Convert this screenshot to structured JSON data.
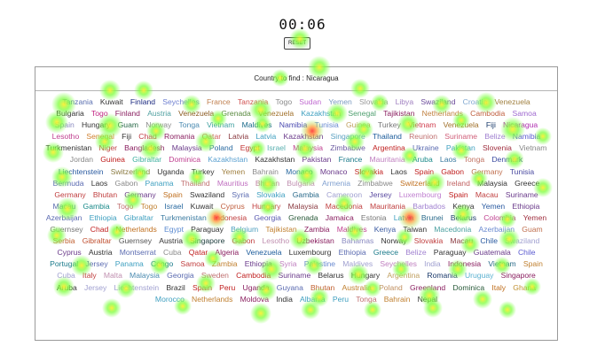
{
  "timer": "00:06",
  "reset_label": "RESET",
  "prompt": "Country to find : Nicaragua",
  "countries": [
    [
      "Tanzania",
      "#5a6fb0"
    ],
    [
      "Kuwait",
      "#333333"
    ],
    [
      "Finland",
      "#1c2a80"
    ],
    [
      "Seychelles",
      "#6e7fd0"
    ],
    [
      "France",
      "#c08050"
    ],
    [
      "Tanzania",
      "#d05050"
    ],
    [
      "Togo",
      "#888888"
    ],
    [
      "Sudan",
      "#c06ad0"
    ],
    [
      "Yemen",
      "#7a9ac0"
    ],
    [
      "Slovakia",
      "#9a9a9a"
    ],
    [
      "Libya",
      "#a080c0"
    ],
    [
      "Swaziland",
      "#6a4a9a"
    ],
    [
      "Croatia",
      "#80a8d0"
    ],
    [
      "Venezuela",
      "#a08040"
    ],
    [
      "Bulgaria",
      "#333333"
    ],
    [
      "Togo",
      "#c02080"
    ],
    [
      "Finland",
      "#8a2060"
    ],
    [
      "Austria",
      "#50a0a0"
    ],
    [
      "Venezuela",
      "#8a5a20"
    ],
    [
      "Grenada",
      "#5a8a40"
    ],
    [
      "Venezuela",
      "#a0702a"
    ],
    [
      "Kazakhstan",
      "#40a0c0"
    ],
    [
      "Senegal",
      "#50a070"
    ],
    [
      "Tajikistan",
      "#8a2060"
    ],
    [
      "Netherlands",
      "#c08040"
    ],
    [
      "Cambodia",
      "#c06040"
    ],
    [
      "Samoa",
      "#a06ad0"
    ],
    [
      "Spain",
      "#8a8ac0"
    ],
    [
      "Hungary",
      "#333333"
    ],
    [
      "Guam",
      "#2a6a4a"
    ],
    [
      "Norway",
      "#8a8a8a"
    ],
    [
      "Tonga",
      "#4a8ab0"
    ],
    [
      "Vietnam",
      "#40a0a0"
    ],
    [
      "Maldives",
      "#1a6a8a"
    ],
    [
      "Namibia",
      "#4a4ab0"
    ],
    [
      "Tunisia",
      "#6a8ad0"
    ],
    [
      "Guinea",
      "#c0a060"
    ],
    [
      "Turkey",
      "#777777"
    ],
    [
      "Vietnam",
      "#d04050"
    ],
    [
      "Venezuela",
      "#a0702a"
    ],
    [
      "Fiji",
      "#1a3a6a"
    ],
    [
      "Nicaragua",
      "#b030b0"
    ],
    [
      "Lesotho",
      "#c04090"
    ],
    [
      "Senegal",
      "#d08030"
    ],
    [
      "Fiji",
      "#333333"
    ],
    [
      "Chad",
      "#c03a40"
    ],
    [
      "Romania",
      "#8a2060"
    ],
    [
      "Qatar",
      "#d06060"
    ],
    [
      "Latvia",
      "#8a3a40"
    ],
    [
      "Latvia",
      "#40a0c0"
    ],
    [
      "Kazakhstan",
      "#6a3a8a"
    ],
    [
      "Singapore",
      "#5aa0c0"
    ],
    [
      "Thailand",
      "#1a5a9a"
    ],
    [
      "Reunion",
      "#c07070"
    ],
    [
      "Suriname",
      "#d0607a"
    ],
    [
      "Belize",
      "#a080d0"
    ],
    [
      "Namibia",
      "#5a5ad0"
    ],
    [
      "Turkmenistan",
      "#333333"
    ],
    [
      "Niger",
      "#c04040"
    ],
    [
      "Bangladesh",
      "#8a2060"
    ],
    [
      "Malaysia",
      "#6a3a8a"
    ],
    [
      "Poland",
      "#2a6aa0"
    ],
    [
      "Egypt",
      "#c03030"
    ],
    [
      "Israel",
      "#5ab0b0"
    ],
    [
      "Malaysia",
      "#c04090"
    ],
    [
      "Zimbabwe",
      "#6a5aa0"
    ],
    [
      "Argentina",
      "#c02020"
    ],
    [
      "Ukraine",
      "#5a6ab0"
    ],
    [
      "Pakistan",
      "#40a0c0"
    ],
    [
      "Slovenia",
      "#a03040"
    ],
    [
      "Vietnam",
      "#888888"
    ],
    [
      "Jordan",
      "#888888"
    ],
    [
      "Guinea",
      "#c02020"
    ],
    [
      "Gibraltar",
      "#40b0a0"
    ],
    [
      "Dominica",
      "#c04090"
    ],
    [
      "Kazakhstan",
      "#5aa0d0"
    ],
    [
      "Kazakhstan",
      "#333333"
    ],
    [
      "Pakistan",
      "#6a3a8a"
    ],
    [
      "France",
      "#1a7a8a"
    ],
    [
      "Mauritania",
      "#c080c0"
    ],
    [
      "Aruba",
      "#1a8a8a"
    ],
    [
      "Laos",
      "#3a7aa0"
    ],
    [
      "Tonga",
      "#c07060"
    ],
    [
      "Denmark",
      "#3a4aa0"
    ],
    [
      "Liechtenstein",
      "#2a5aa0"
    ],
    [
      "Switzerland",
      "#8a7a40"
    ],
    [
      "Uganda",
      "#333333"
    ],
    [
      "Turkey",
      "#333333"
    ],
    [
      "Yemen",
      "#a08040"
    ],
    [
      "Bahrain",
      "#8a8a8a"
    ],
    [
      "Monaco",
      "#2a6aa0"
    ],
    [
      "Monaco",
      "#6a3a8a"
    ],
    [
      "Slovakia",
      "#c02020"
    ],
    [
      "Laos",
      "#333333"
    ],
    [
      "Spain",
      "#c02020"
    ],
    [
      "Gabon",
      "#c02020"
    ],
    [
      "Germany",
      "#c07050"
    ],
    [
      "Tunisia",
      "#4a4aa0"
    ],
    [
      "Bermuda",
      "#5a6ab0"
    ],
    [
      "Laos",
      "#333333"
    ],
    [
      "Gabon",
      "#8a8a8a"
    ],
    [
      "Panama",
      "#40a0c0"
    ],
    [
      "Thailand",
      "#c07070"
    ],
    [
      "Mauritius",
      "#c070c0"
    ],
    [
      "Bhutan",
      "#c080a0"
    ],
    [
      "Bulgaria",
      "#c090b0"
    ],
    [
      "Armenia",
      "#80a0d0"
    ],
    [
      "Zimbabwe",
      "#8a8a8a"
    ],
    [
      "Switzerland",
      "#c07020"
    ],
    [
      "Ireland",
      "#c06060"
    ],
    [
      "Malaysia",
      "#333333"
    ],
    [
      "Greece",
      "#333333"
    ],
    [
      "Germany",
      "#c04040"
    ],
    [
      "Bhutan",
      "#c04040"
    ],
    [
      "Germany",
      "#6a3a8a"
    ],
    [
      "Spain",
      "#c07020"
    ],
    [
      "Swaziland",
      "#333333"
    ],
    [
      "Syria",
      "#5a6ab0"
    ],
    [
      "Slovakia",
      "#40a0c0"
    ],
    [
      "Gambia",
      "#2a6a8a"
    ],
    [
      "Cameroon",
      "#a0a0d0"
    ],
    [
      "Jersey",
      "#5a4aa0"
    ],
    [
      "Luxembourg",
      "#c080d0"
    ],
    [
      "Spain",
      "#c02020"
    ],
    [
      "Macau",
      "#c04040"
    ],
    [
      "Suriname",
      "#6a3a8a"
    ],
    [
      "Macau",
      "#5a6ab0"
    ],
    [
      "Gambia",
      "#1a8a8a"
    ],
    [
      "Togo",
      "#c07070"
    ],
    [
      "Togo",
      "#c08030"
    ],
    [
      "Israel",
      "#2a6aa0"
    ],
    [
      "Kuwait",
      "#333333"
    ],
    [
      "Cyprus",
      "#c06040"
    ],
    [
      "Hungary",
      "#c04040"
    ],
    [
      "Malaysia",
      "#8a3a40"
    ],
    [
      "Macedonia",
      "#c04040"
    ],
    [
      "Mauritania",
      "#c04040"
    ],
    [
      "Barbados",
      "#a080d0"
    ],
    [
      "Kenya",
      "#333333"
    ],
    [
      "Yemen",
      "#2a5aa0"
    ],
    [
      "Ethiopia",
      "#6a3a8a"
    ],
    [
      "Azerbaijan",
      "#5a6ab0"
    ],
    [
      "Ethiopia",
      "#40a0c0"
    ],
    [
      "Gibraltar",
      "#40a0c0"
    ],
    [
      "Turkmenistan",
      "#3a7aa0"
    ],
    [
      "Indonesia",
      "#c04040"
    ],
    [
      "Georgia",
      "#5a5ab0"
    ],
    [
      "Grenada",
      "#2a5a3a"
    ],
    [
      "Jamaica",
      "#8a2060"
    ],
    [
      "Estonia",
      "#777777"
    ],
    [
      "Latvia",
      "#40a0c0"
    ],
    [
      "Brunei",
      "#2a6a8a"
    ],
    [
      "Belarus",
      "#1a3a6a"
    ],
    [
      "Colombia",
      "#c04090"
    ],
    [
      "Yemen",
      "#a03040"
    ],
    [
      "Guernsey",
      "#777777"
    ],
    [
      "Chad",
      "#c02020"
    ],
    [
      "Netherlands",
      "#c07020"
    ],
    [
      "Egypt",
      "#5a8ad0"
    ],
    [
      "Paraguay",
      "#333333"
    ],
    [
      "Belgium",
      "#50a0c0"
    ],
    [
      "Tajikistan",
      "#c08030"
    ],
    [
      "Zambia",
      "#8a2060"
    ],
    [
      "Maldives",
      "#c04090"
    ],
    [
      "Kenya",
      "#3a5aa0"
    ],
    [
      "Taiwan",
      "#333333"
    ],
    [
      "Macedonia",
      "#4aa0a0"
    ],
    [
      "Azerbaijan",
      "#6a8ad0"
    ],
    [
      "Guam",
      "#c07050"
    ],
    [
      "Serbia",
      "#c06030"
    ],
    [
      "Gibraltar",
      "#c05030"
    ],
    [
      "Guernsey",
      "#555555"
    ],
    [
      "Austria",
      "#333333"
    ],
    [
      "Singapore",
      "#1a3a3a"
    ],
    [
      "Gabon",
      "#c04040"
    ],
    [
      "Lesotho",
      "#c090b0"
    ],
    [
      "Uzbekistan",
      "#8a2060"
    ],
    [
      "Bahamas",
      "#8a8ac0"
    ],
    [
      "Norway",
      "#333333"
    ],
    [
      "Slovakia",
      "#c04040"
    ],
    [
      "Macau",
      "#8a3a40"
    ],
    [
      "Chile",
      "#2a5aa0"
    ],
    [
      "Swaziland",
      "#a0a0d0"
    ],
    [
      "Cyprus",
      "#6a3a8a"
    ],
    [
      "Austria",
      "#333333"
    ],
    [
      "Montserrat",
      "#5a6ab0"
    ],
    [
      "Cuba",
      "#8a8a8a"
    ],
    [
      "Qatar",
      "#c02020"
    ],
    [
      "Algeria",
      "#8a2060"
    ],
    [
      "Venezuela",
      "#1a5a9a"
    ],
    [
      "Luxembourg",
      "#333333"
    ],
    [
      "Ethiopia",
      "#5a6ab0"
    ],
    [
      "Greece",
      "#1a7a8a"
    ],
    [
      "Belize",
      "#a080d0"
    ],
    [
      "Paraguay",
      "#333333"
    ],
    [
      "Guatemala",
      "#6a3a8a"
    ],
    [
      "Chile",
      "#5a5ad0"
    ],
    [
      "Portugal",
      "#1a7a8a"
    ],
    [
      "Jersey",
      "#5a6ab0"
    ],
    [
      "Panama",
      "#40a0c0"
    ],
    [
      "Congo",
      "#1a7a8a"
    ],
    [
      "Samoa",
      "#c04040"
    ],
    [
      "Zambia",
      "#c08030"
    ],
    [
      "Ethiopia",
      "#6a3a8a"
    ],
    [
      "Syria",
      "#c080c0"
    ],
    [
      "Palestine",
      "#6a8ad0"
    ],
    [
      "Maldives",
      "#a0a0d0"
    ],
    [
      "Seychelles",
      "#c080c0"
    ],
    [
      "India",
      "#a0a0d0"
    ],
    [
      "Indonesia",
      "#8a2060"
    ],
    [
      "Vietnam",
      "#2a6a8a"
    ],
    [
      "Spain",
      "#c08030"
    ],
    [
      "Cuba",
      "#a0a0d0"
    ],
    [
      "Italy",
      "#c04040"
    ],
    [
      "Malta",
      "#c090b0"
    ],
    [
      "Malaysia",
      "#4a8ab0"
    ],
    [
      "Georgia",
      "#5a6ab0"
    ],
    [
      "Sweden",
      "#c07070"
    ],
    [
      "Cambodia",
      "#c02020"
    ],
    [
      "Suriname",
      "#6a3a8a"
    ],
    [
      "Belarus",
      "#333333"
    ],
    [
      "Hungary",
      "#333333"
    ],
    [
      "Argentina",
      "#c0a060"
    ],
    [
      "Romania",
      "#1a3a6a"
    ],
    [
      "Uruguay",
      "#5ab0d0"
    ],
    [
      "Singapore",
      "#8a2060"
    ],
    [
      "Aruba",
      "#333333"
    ],
    [
      "Jersey",
      "#a0a0d0"
    ],
    [
      "Liechtenstein",
      "#a0a0d0"
    ],
    [
      "Brazil",
      "#333333"
    ],
    [
      "Spain",
      "#c02020"
    ],
    [
      "Peru",
      "#c02020"
    ],
    [
      "Uganda",
      "#8a2060"
    ],
    [
      "Guyana",
      "#5a6ab0"
    ],
    [
      "Bhutan",
      "#c06030"
    ],
    [
      "Australia",
      "#c08030"
    ],
    [
      "Poland",
      "#c09060"
    ],
    [
      "Greenland",
      "#8a2060"
    ],
    [
      "Dominica",
      "#2a5a3a"
    ],
    [
      "Italy",
      "#c07020"
    ],
    [
      "Ghana",
      "#c09030"
    ],
    [
      "Morocco",
      "#40a0c0"
    ],
    [
      "Netherlands",
      "#c08030"
    ],
    [
      "Moldova",
      "#8a2060"
    ],
    [
      "India",
      "#333333"
    ],
    [
      "Albania",
      "#40a0c0"
    ],
    [
      "Peru",
      "#40a0c0"
    ],
    [
      "Tonga",
      "#c07070"
    ],
    [
      "Bahrain",
      "#c08030"
    ],
    [
      "Nepal",
      "#333333"
    ]
  ],
  "heatmap_color": "#7cff3c"
}
